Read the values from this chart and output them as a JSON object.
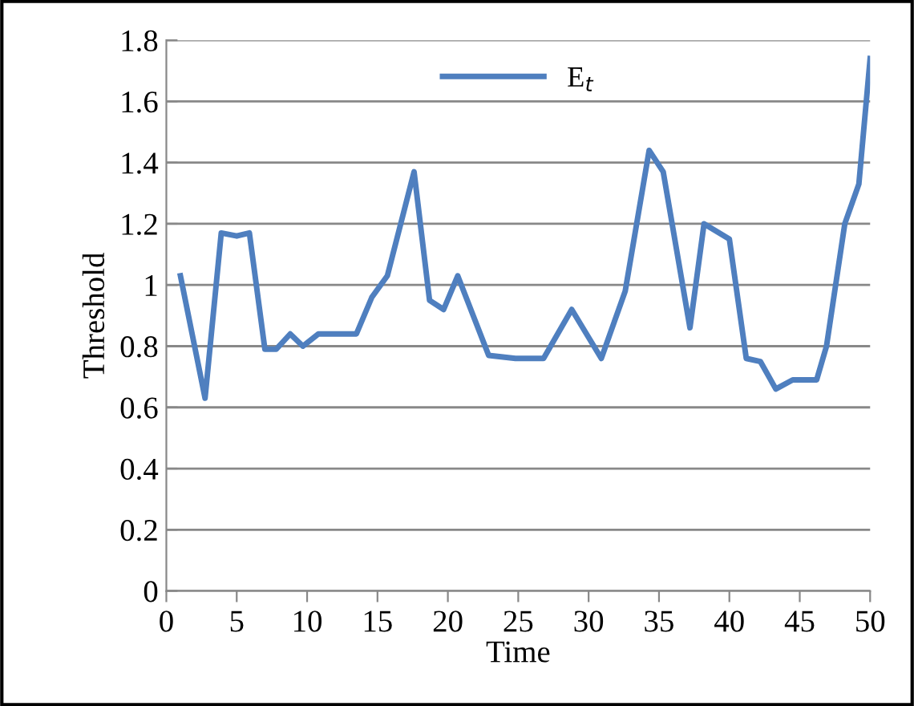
{
  "chart_data": {
    "type": "line",
    "xlabel": "Time",
    "ylabel": "Threshold",
    "xlim": [
      0,
      50
    ],
    "xticks": [
      0,
      5,
      10,
      15,
      20,
      25,
      30,
      35,
      40,
      45,
      50
    ],
    "ylim": [
      0,
      1.8
    ],
    "yticks": [
      0,
      0.2,
      0.4,
      0.6,
      0.8,
      1,
      1.2,
      1.4,
      1.6,
      1.8
    ],
    "grid": "y",
    "legend": "top",
    "marker": "none",
    "line_style": "solid",
    "series": [
      {
        "name": "E$_{t}$",
        "color": "#4f7fbf",
        "x": [
          1,
          2.75,
          3.9,
          5,
          5.9,
          7,
          7.8,
          8.8,
          9.7,
          10.8,
          13.5,
          14.6,
          15.7,
          17.6,
          18.7,
          19.7,
          20.7,
          22.9,
          24.8,
          26.8,
          28.8,
          30.9,
          32.6,
          34.3,
          35.3,
          37.2,
          38.2,
          40,
          41.2,
          42.2,
          43.3,
          44.5,
          46.2,
          46.9,
          48.2,
          49.2,
          50
        ],
        "values": [
          1.03,
          0.63,
          1.17,
          1.16,
          1.17,
          0.79,
          0.79,
          0.84,
          0.8,
          0.84,
          0.84,
          0.96,
          1.03,
          1.37,
          0.95,
          0.92,
          1.03,
          0.77,
          0.76,
          0.76,
          0.92,
          0.76,
          0.98,
          1.44,
          1.37,
          0.86,
          1.2,
          1.15,
          0.76,
          0.75,
          0.66,
          0.69,
          0.69,
          0.8,
          1.2,
          1.33,
          1.74
        ]
      }
    ]
  }
}
